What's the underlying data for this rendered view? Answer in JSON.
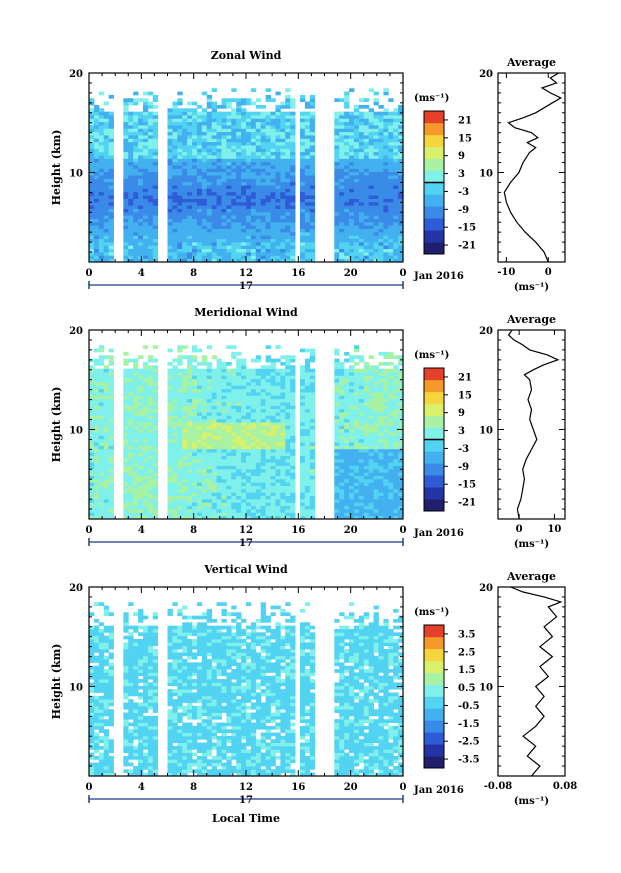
{
  "figure": {
    "xlabel": "Local Time",
    "date_label": "Jan 2016",
    "day_label": "17",
    "x_ticks": [
      "0",
      "4",
      "8",
      "12",
      "16",
      "20",
      "0"
    ],
    "avg_title": "Average",
    "unit_label": "(ms⁻¹)",
    "avg_unit_label": "(ms⁻¹)"
  },
  "colors": {
    "colormap": [
      "#1f1f6e",
      "#2533a8",
      "#2e5bd6",
      "#3a8ae8",
      "#43b0ef",
      "#52d3f2",
      "#7ff0ea",
      "#a8f2a4",
      "#d8f06a",
      "#f5d43c",
      "#f59a2a",
      "#e5412a"
    ],
    "gap": "#ffffff",
    "axis": "#000000",
    "date_bar": "#1f3a8a"
  },
  "chart_data": [
    {
      "type": "heatmap",
      "title": "Zonal Wind",
      "ylabel": "Height (km)",
      "xlim": [
        0,
        24
      ],
      "ylim": [
        1,
        20
      ],
      "y_ticks": [
        "10",
        "20"
      ],
      "colorbar": {
        "ticks": [
          "21",
          "15",
          "9",
          "3",
          "-3",
          "-9",
          "-15",
          "-21"
        ],
        "range": [
          -24,
          24
        ],
        "zero_line": true
      },
      "data_gaps_hours": [
        [
          1.8,
          2.8
        ],
        [
          5.4,
          5.9
        ],
        [
          15.2,
          15.4
        ],
        [
          15.9,
          16.3
        ],
        [
          17.1,
          18.8
        ]
      ],
      "average": {
        "xlim": [
          -12,
          4
        ],
        "x_ticks": [
          "-10",
          "0"
        ],
        "y_ticks": [
          "10",
          "20"
        ],
        "profile": [
          {
            "h": 1.0,
            "v": 0.0
          },
          {
            "h": 2.0,
            "v": -1.0
          },
          {
            "h": 3.0,
            "v": -3.0
          },
          {
            "h": 4.0,
            "v": -5.5
          },
          {
            "h": 5.0,
            "v": -7.5
          },
          {
            "h": 6.0,
            "v": -9.0
          },
          {
            "h": 7.0,
            "v": -10.0
          },
          {
            "h": 8.0,
            "v": -10.5
          },
          {
            "h": 9.0,
            "v": -9.0
          },
          {
            "h": 10.0,
            "v": -7.0
          },
          {
            "h": 11.0,
            "v": -6.0
          },
          {
            "h": 12.0,
            "v": -4.5
          },
          {
            "h": 12.5,
            "v": -3.0
          },
          {
            "h": 13.0,
            "v": -5.0
          },
          {
            "h": 13.5,
            "v": -2.5
          },
          {
            "h": 14.0,
            "v": -4.0
          },
          {
            "h": 14.5,
            "v": -8.0
          },
          {
            "h": 15.0,
            "v": -9.5
          },
          {
            "h": 15.5,
            "v": -6.0
          },
          {
            "h": 16.0,
            "v": -3.0
          },
          {
            "h": 16.5,
            "v": -1.0
          },
          {
            "h": 17.0,
            "v": 1.0
          },
          {
            "h": 17.5,
            "v": 3.0
          },
          {
            "h": 18.0,
            "v": 0.5
          },
          {
            "h": 18.5,
            "v": -1.5
          },
          {
            "h": 19.0,
            "v": 2.0
          },
          {
            "h": 19.5,
            "v": 0.5
          },
          {
            "h": 20.0,
            "v": 2.5
          }
        ]
      }
    },
    {
      "type": "heatmap",
      "title": "Meridional Wind",
      "ylabel": "Height (km)",
      "xlim": [
        0,
        24
      ],
      "ylim": [
        1,
        20
      ],
      "y_ticks": [
        "10",
        "20"
      ],
      "colorbar": {
        "ticks": [
          "21",
          "15",
          "9",
          "3",
          "-3",
          "-9",
          "-15",
          "-21"
        ],
        "range": [
          -24,
          24
        ],
        "zero_line": true
      },
      "data_gaps_hours": [
        [
          1.8,
          2.8
        ],
        [
          5.4,
          5.9
        ],
        [
          15.2,
          15.4
        ],
        [
          15.9,
          16.3
        ],
        [
          17.1,
          18.8
        ]
      ],
      "average": {
        "xlim": [
          -6,
          13
        ],
        "x_ticks": [
          "0",
          "10"
        ],
        "y_ticks": [
          "10",
          "20"
        ],
        "profile": [
          {
            "h": 1.0,
            "v": 0.0
          },
          {
            "h": 2.0,
            "v": -0.5
          },
          {
            "h": 3.0,
            "v": 0.5
          },
          {
            "h": 4.0,
            "v": 1.0
          },
          {
            "h": 5.0,
            "v": 1.5
          },
          {
            "h": 6.0,
            "v": 1.0
          },
          {
            "h": 7.0,
            "v": 2.0
          },
          {
            "h": 8.0,
            "v": 3.5
          },
          {
            "h": 9.0,
            "v": 5.0
          },
          {
            "h": 10.0,
            "v": 4.0
          },
          {
            "h": 11.0,
            "v": 3.0
          },
          {
            "h": 12.0,
            "v": 3.5
          },
          {
            "h": 13.0,
            "v": 2.5
          },
          {
            "h": 14.0,
            "v": 3.5
          },
          {
            "h": 15.0,
            "v": 3.0
          },
          {
            "h": 15.5,
            "v": 1.5
          },
          {
            "h": 16.0,
            "v": 4.0
          },
          {
            "h": 16.5,
            "v": 7.0
          },
          {
            "h": 17.0,
            "v": 11.0
          },
          {
            "h": 17.5,
            "v": 8.0
          },
          {
            "h": 18.0,
            "v": 3.0
          },
          {
            "h": 18.5,
            "v": 1.0
          },
          {
            "h": 19.0,
            "v": -1.5
          },
          {
            "h": 19.5,
            "v": -3.0
          },
          {
            "h": 20.0,
            "v": -2.0
          }
        ]
      }
    },
    {
      "type": "heatmap",
      "title": "Vertical Wind",
      "ylabel": "Height (km)",
      "xlim": [
        0,
        24
      ],
      "ylim": [
        1,
        20
      ],
      "y_ticks": [
        "10",
        "20"
      ],
      "colorbar": {
        "ticks": [
          "3.5",
          "2.5",
          "1.5",
          "0.5",
          "-0.5",
          "-1.5",
          "-2.5",
          "-3.5"
        ],
        "range": [
          -4,
          4
        ],
        "zero_line": false
      },
      "data_gaps_hours": [
        [
          1.8,
          2.8
        ],
        [
          5.4,
          5.9
        ],
        [
          15.2,
          15.4
        ],
        [
          15.9,
          16.3
        ],
        [
          17.1,
          18.8
        ]
      ],
      "average": {
        "xlim": [
          -0.08,
          0.08
        ],
        "x_ticks": [
          "-0.08",
          "0.08"
        ],
        "y_ticks": [
          "10",
          "20"
        ],
        "profile": [
          {
            "h": 1.0,
            "v": 0.0
          },
          {
            "h": 2.0,
            "v": 0.02
          },
          {
            "h": 3.0,
            "v": -0.01
          },
          {
            "h": 4.0,
            "v": 0.01
          },
          {
            "h": 5.0,
            "v": -0.02
          },
          {
            "h": 6.0,
            "v": 0.01
          },
          {
            "h": 7.0,
            "v": 0.03
          },
          {
            "h": 8.0,
            "v": 0.01
          },
          {
            "h": 9.0,
            "v": 0.03
          },
          {
            "h": 10.0,
            "v": 0.01
          },
          {
            "h": 11.0,
            "v": 0.04
          },
          {
            "h": 12.0,
            "v": 0.02
          },
          {
            "h": 13.0,
            "v": 0.05
          },
          {
            "h": 14.0,
            "v": 0.02
          },
          {
            "h": 15.0,
            "v": 0.05
          },
          {
            "h": 16.0,
            "v": 0.03
          },
          {
            "h": 17.0,
            "v": 0.06
          },
          {
            "h": 18.0,
            "v": 0.04
          },
          {
            "h": 18.5,
            "v": 0.07
          },
          {
            "h": 19.0,
            "v": 0.03
          },
          {
            "h": 19.5,
            "v": -0.02
          },
          {
            "h": 20.0,
            "v": -0.05
          }
        ]
      }
    }
  ]
}
